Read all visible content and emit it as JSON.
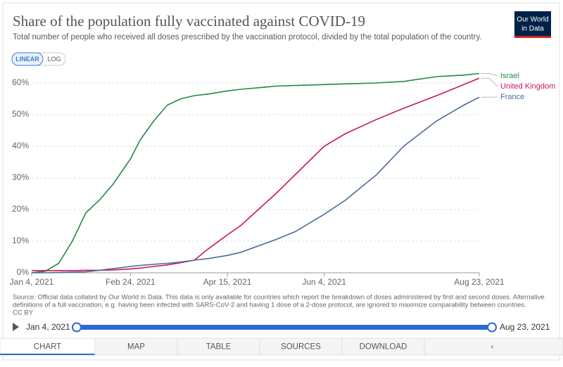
{
  "chart_data": {
    "type": "line",
    "title": "Share of the population fully vaccinated against COVID-19",
    "subtitle": "Total number of people who received all doses prescribed by the vaccination protocol, divided by the total population of the country.",
    "x": [
      "2021-01-04",
      "2021-01-11",
      "2021-01-18",
      "2021-01-25",
      "2021-02-01",
      "2021-02-08",
      "2021-02-15",
      "2021-02-24",
      "2021-03-01",
      "2021-03-08",
      "2021-03-15",
      "2021-03-22",
      "2021-03-29",
      "2021-04-05",
      "2021-04-15",
      "2021-04-22",
      "2021-05-01",
      "2021-05-10",
      "2021-05-20",
      "2021-06-04",
      "2021-06-15",
      "2021-07-01",
      "2021-07-15",
      "2021-08-01",
      "2021-08-15",
      "2021-08-23"
    ],
    "series": [
      {
        "name": "Israel",
        "color": "#1f8a45",
        "values": [
          0,
          0.5,
          3,
          10,
          19,
          23,
          28,
          36,
          42,
          48,
          53,
          55,
          56,
          56.5,
          57.5,
          58,
          58.5,
          59,
          59.2,
          59.5,
          59.7,
          60,
          60.5,
          62,
          62.5,
          63
        ]
      },
      {
        "name": "United Kingdom",
        "color": "#c8175a",
        "values": [
          0.7,
          0.7,
          0.7,
          0.7,
          0.8,
          0.8,
          0.9,
          1.2,
          1.5,
          2,
          2.5,
          3.2,
          4,
          7.5,
          12,
          15,
          20,
          25,
          31,
          40,
          44,
          48.5,
          52,
          56,
          59.5,
          61.5
        ]
      },
      {
        "name": "France",
        "color": "#4c6a9c",
        "values": [
          0,
          0,
          0.1,
          0.2,
          0.3,
          0.8,
          1.3,
          2,
          2.3,
          2.7,
          3,
          3.4,
          4,
          4.5,
          5.5,
          6.5,
          8.5,
          10.5,
          13,
          18.5,
          23,
          31,
          40,
          48,
          53,
          55.5
        ]
      }
    ],
    "xlim": [
      "2021-01-04",
      "2021-08-23"
    ],
    "xticks": [
      {
        "value": "2021-01-04",
        "label": "Jan 4, 2021"
      },
      {
        "value": "2021-02-24",
        "label": "Feb 24, 2021"
      },
      {
        "value": "2021-04-15",
        "label": "Apr 15, 2021"
      },
      {
        "value": "2021-06-04",
        "label": "Jun 4, 2021"
      },
      {
        "value": "2021-08-23",
        "label": "Aug 23, 2021"
      }
    ],
    "ylim": [
      0,
      65
    ],
    "yticks": [
      {
        "value": 0,
        "label": "0%"
      },
      {
        "value": 10,
        "label": "10%"
      },
      {
        "value": 20,
        "label": "20%"
      },
      {
        "value": 30,
        "label": "30%"
      },
      {
        "value": 40,
        "label": "40%"
      },
      {
        "value": 50,
        "label": "50%"
      },
      {
        "value": 60,
        "label": "60%"
      }
    ],
    "grid": true
  },
  "logo": [
    "Our World",
    "in Data"
  ],
  "scale_buttons": [
    "LINEAR",
    "LOG"
  ],
  "source": [
    "Source: Official data collated by Our World in Data. This data is only available for countries which report the breakdown of doses administered by first and second doses. Alternative",
    "definitions of a full vaccination, e.g. having been infected with SARS-CoV-2 and having 1 dose of a 2-dose protocol, are ignored to maximize comparability between countries."
  ],
  "license": "CC BY",
  "timeline": {
    "start": "Jan 4, 2021",
    "end": "Aug 23, 2021"
  },
  "tabs": [
    "CHART",
    "MAP",
    "TABLE",
    "SOURCES",
    "DOWNLOAD"
  ]
}
